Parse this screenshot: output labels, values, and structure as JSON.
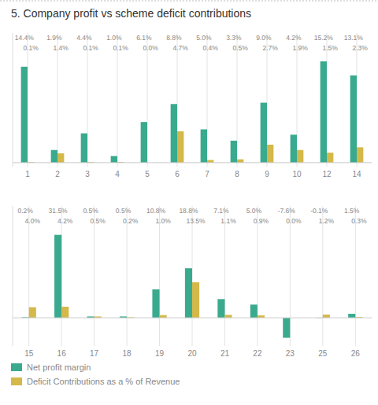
{
  "chart_data": [
    {
      "type": "bar",
      "title": "5. Company profit vs scheme deficit contributions",
      "categories": [
        "1",
        "2",
        "3",
        "4",
        "5",
        "6",
        "7",
        "8",
        "9",
        "10",
        "12",
        "14"
      ],
      "series": [
        {
          "color": "#3aaa8e",
          "values": [
            14.4,
            1.9,
            4.4,
            1.0,
            6.1,
            8.8,
            5.0,
            3.3,
            9.0,
            4.2,
            15.2,
            13.1
          ],
          "value_labels": [
            "14.4%",
            "1.9%",
            "4.4%",
            "1.0%",
            "6.1%",
            "8.8%",
            "5.0%",
            "3.3%",
            "9.0%",
            "4.2%",
            "15.2%",
            "13.1%"
          ]
        },
        {
          "color": "#d4b84a",
          "values": [
            0.1,
            1.4,
            0.1,
            0.1,
            0.0,
            4.7,
            0.4,
            0.5,
            2.7,
            1.9,
            1.5,
            2.3
          ],
          "value_labels": [
            "0.1%",
            "1.4%",
            "0.1%",
            "0.1%",
            "0.0%",
            "4.7%",
            "0.4%",
            "0.5%",
            "2.7%",
            "1.9%",
            "1.5%",
            "2.3%"
          ]
        }
      ],
      "ylim": [
        -0.608,
        19.456
      ],
      "grid": true,
      "data_labels": true,
      "tick_labels": "x"
    },
    {
      "type": "bar",
      "categories": [
        "15",
        "16",
        "17",
        "18",
        "19",
        "20",
        "21",
        "22",
        "23",
        "25",
        "26"
      ],
      "series": [
        {
          "name": "Net profit margin",
          "color": "#3aaa8e",
          "values": [
            0.2,
            31.5,
            0.5,
            0.5,
            10.8,
            18.8,
            7.1,
            5.0,
            -7.6,
            -0.1,
            1.5
          ],
          "value_labels": [
            "0.2%",
            "31.5%",
            "0.5%",
            "0.5%",
            "10.8%",
            "18.8%",
            "7.1%",
            "5.0%",
            "-7.6%",
            "-0.1%",
            "1.5%"
          ]
        },
        {
          "name": "Deficit Contributions as a % of Revenue",
          "color": "#d4b84a",
          "values": [
            4.0,
            4.2,
            0.5,
            0.2,
            1.0,
            13.5,
            1.1,
            0.9,
            0.0,
            1.2,
            0.3
          ],
          "value_labels": [
            "4.0%",
            "4.2%",
            "0.5%",
            "0.2%",
            "1.0%",
            "13.5%",
            "1.1%",
            "0.9%",
            "0.0%",
            "1.2%",
            "0.3%"
          ]
        }
      ],
      "ylim": [
        -10.728,
        42.448
      ],
      "grid": true,
      "data_labels": true,
      "tick_labels": "x",
      "legend": "bottom"
    }
  ]
}
